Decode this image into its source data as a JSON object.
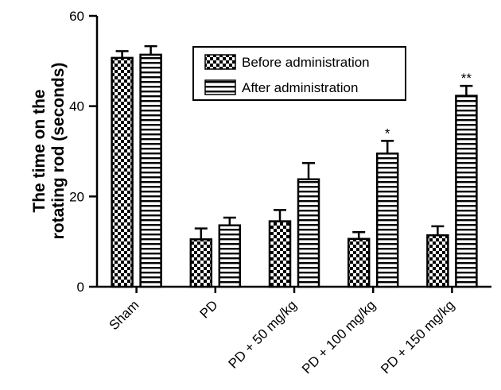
{
  "chart_data": {
    "type": "bar",
    "title": "",
    "xlabel": "",
    "ylabel_lines": [
      "The time on the",
      "rotating rod (seconds)"
    ],
    "ylim": [
      0,
      60
    ],
    "yticks": [
      "0",
      "20",
      "40",
      "60"
    ],
    "categories": [
      "Sham",
      "PD",
      "PD + 50 mg/kg",
      "PD + 100 mg/kg",
      "PD + 150 mg/kg"
    ],
    "series": [
      {
        "name": "Before administration",
        "pattern": "checkerboard",
        "values": [
          50.7,
          10.5,
          14.5,
          10.6,
          11.4
        ],
        "errors": [
          1.5,
          2.4,
          2.5,
          1.5,
          2.0
        ]
      },
      {
        "name": "After administration",
        "pattern": "horizontal-stripes",
        "values": [
          51.4,
          13.6,
          23.8,
          29.5,
          42.3
        ],
        "errors": [
          1.9,
          1.7,
          3.6,
          2.8,
          2.2
        ]
      }
    ],
    "annotations": [
      "",
      "",
      "",
      "*",
      "**"
    ],
    "legend_position": "top-center",
    "grid": false
  },
  "colors": {
    "bar_fill": "#000000",
    "background": "#ffffff",
    "axis": "#000000"
  }
}
